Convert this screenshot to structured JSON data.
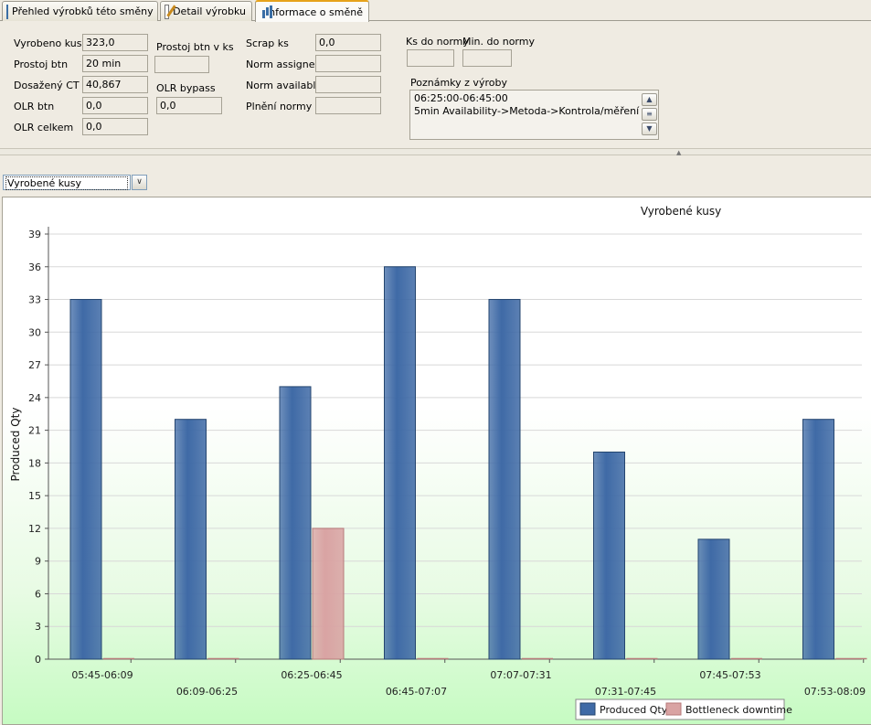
{
  "tabs": [
    {
      "label": "Přehled výrobků této směny",
      "icon": "table-icon"
    },
    {
      "label": "Detail výrobku",
      "icon": "edit-icon"
    },
    {
      "label": "Informace o směně",
      "icon": "bar-chart-icon",
      "active": true
    }
  ],
  "info": {
    "produced_label": "Vyrobeno kusů",
    "produced_value": "323,0",
    "downtime_label": "Prostoj btn",
    "downtime_value": "20 min",
    "ct_label": "Dosažený CT",
    "ct_value": "40,867",
    "olr_label": "OLR btn",
    "olr_value": "0,0",
    "olr_total_label": "OLR celkem",
    "olr_total_value": "0,0",
    "downtime_pcs_label": "Prostoj btn v ks",
    "downtime_pcs_value": "",
    "olr_bypass_label": "OLR bypass",
    "olr_bypass_value": "0,0",
    "scrap_label": "Scrap ks",
    "scrap_value": "0,0",
    "norm_assigned_label": "Norm assigned",
    "norm_assigned_value": "",
    "norm_available_label": "Norm available",
    "norm_available_value": "",
    "norm_fulfill_label": "Plnění normy",
    "norm_fulfill_value": "",
    "pcs_to_norm_label": "Ks do normy",
    "pcs_to_norm_value": "",
    "min_to_norm_label": "Min. do normy",
    "min_to_norm_value": "",
    "notes_label": "Poznámky z výroby",
    "notes_line1": "06:25:00-06:45:00",
    "notes_line2": "5min Availability->Metoda->Kontrola/měření"
  },
  "selector": {
    "value": "Vyrobené kusy"
  },
  "chart_data": {
    "type": "bar",
    "title": "Vyrobené kusy",
    "ylabel": "Produced Qty",
    "xlabel": "",
    "ylim": [
      0,
      39
    ],
    "yticks": [
      0,
      3,
      6,
      9,
      12,
      15,
      18,
      21,
      24,
      27,
      30,
      33,
      36,
      39
    ],
    "categories": [
      "05:45-06:09",
      "06:09-06:25",
      "06:25-06:45",
      "06:45-07:07",
      "07:07-07:31",
      "07:31-07:45",
      "07:45-07:53",
      "07:53-08:09"
    ],
    "series": [
      {
        "name": "Produced Qty",
        "color": "#3f6aa6",
        "values": [
          33,
          22,
          25,
          36,
          33,
          19,
          11,
          22
        ]
      },
      {
        "name": "Bottleneck downtime",
        "color": "#d9a3a3",
        "values": [
          0,
          0,
          12,
          0,
          0,
          0,
          0,
          0
        ]
      }
    ],
    "legend_position": "bottom-right",
    "grid": true
  }
}
